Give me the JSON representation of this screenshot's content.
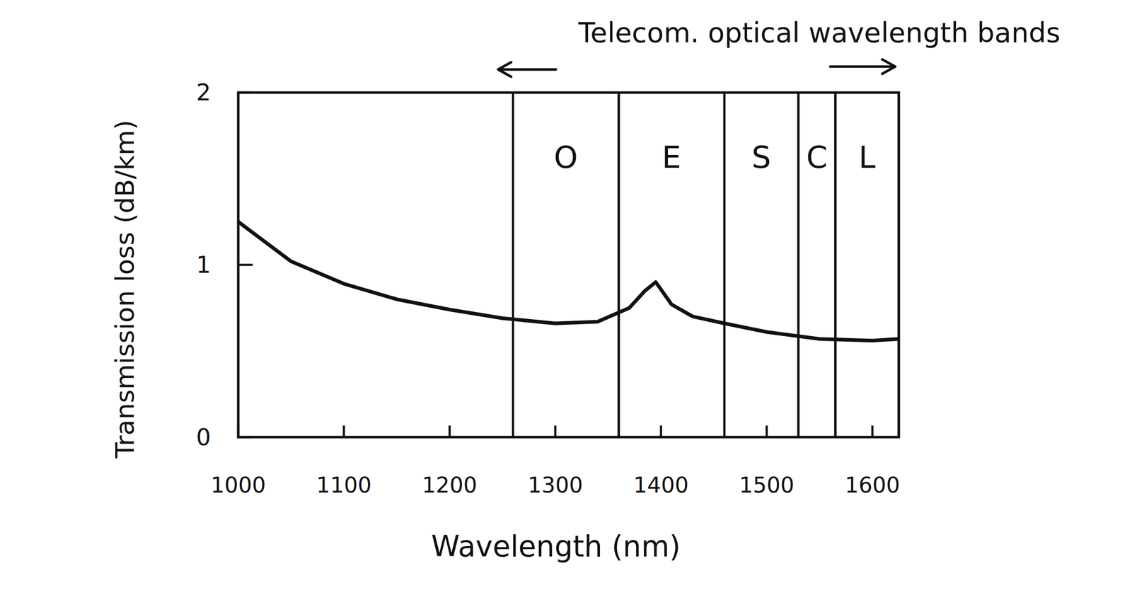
{
  "chart_data": {
    "type": "line",
    "annotation": "Telecom. optical wavelength bands",
    "x_label": "Wavelength (nm)",
    "y_label": "Transmission loss (dB/km)",
    "x": [
      1000,
      1050,
      1100,
      1150,
      1200,
      1250,
      1300,
      1340,
      1370,
      1385,
      1395,
      1410,
      1430,
      1460,
      1500,
      1550,
      1600,
      1625
    ],
    "series": [
      {
        "name": "Transmission loss",
        "color": "#111111",
        "values": [
          1.25,
          1.02,
          0.89,
          0.8,
          0.74,
          0.69,
          0.66,
          0.67,
          0.75,
          0.85,
          0.9,
          0.77,
          0.7,
          0.66,
          0.61,
          0.57,
          0.56,
          0.57
        ]
      }
    ],
    "bands": [
      {
        "name": "O",
        "start": 1260,
        "end": 1360
      },
      {
        "name": "E",
        "start": 1360,
        "end": 1460
      },
      {
        "name": "S",
        "start": 1460,
        "end": 1530
      },
      {
        "name": "C",
        "start": 1530,
        "end": 1565
      },
      {
        "name": "L",
        "start": 1565,
        "end": 1625
      }
    ],
    "xlim": [
      1000,
      1625
    ],
    "xticks": [
      1000,
      1100,
      1200,
      1300,
      1400,
      1500,
      1600
    ],
    "ylim": [
      0,
      2
    ],
    "yticks": [
      0,
      1,
      2
    ],
    "grid": false
  }
}
